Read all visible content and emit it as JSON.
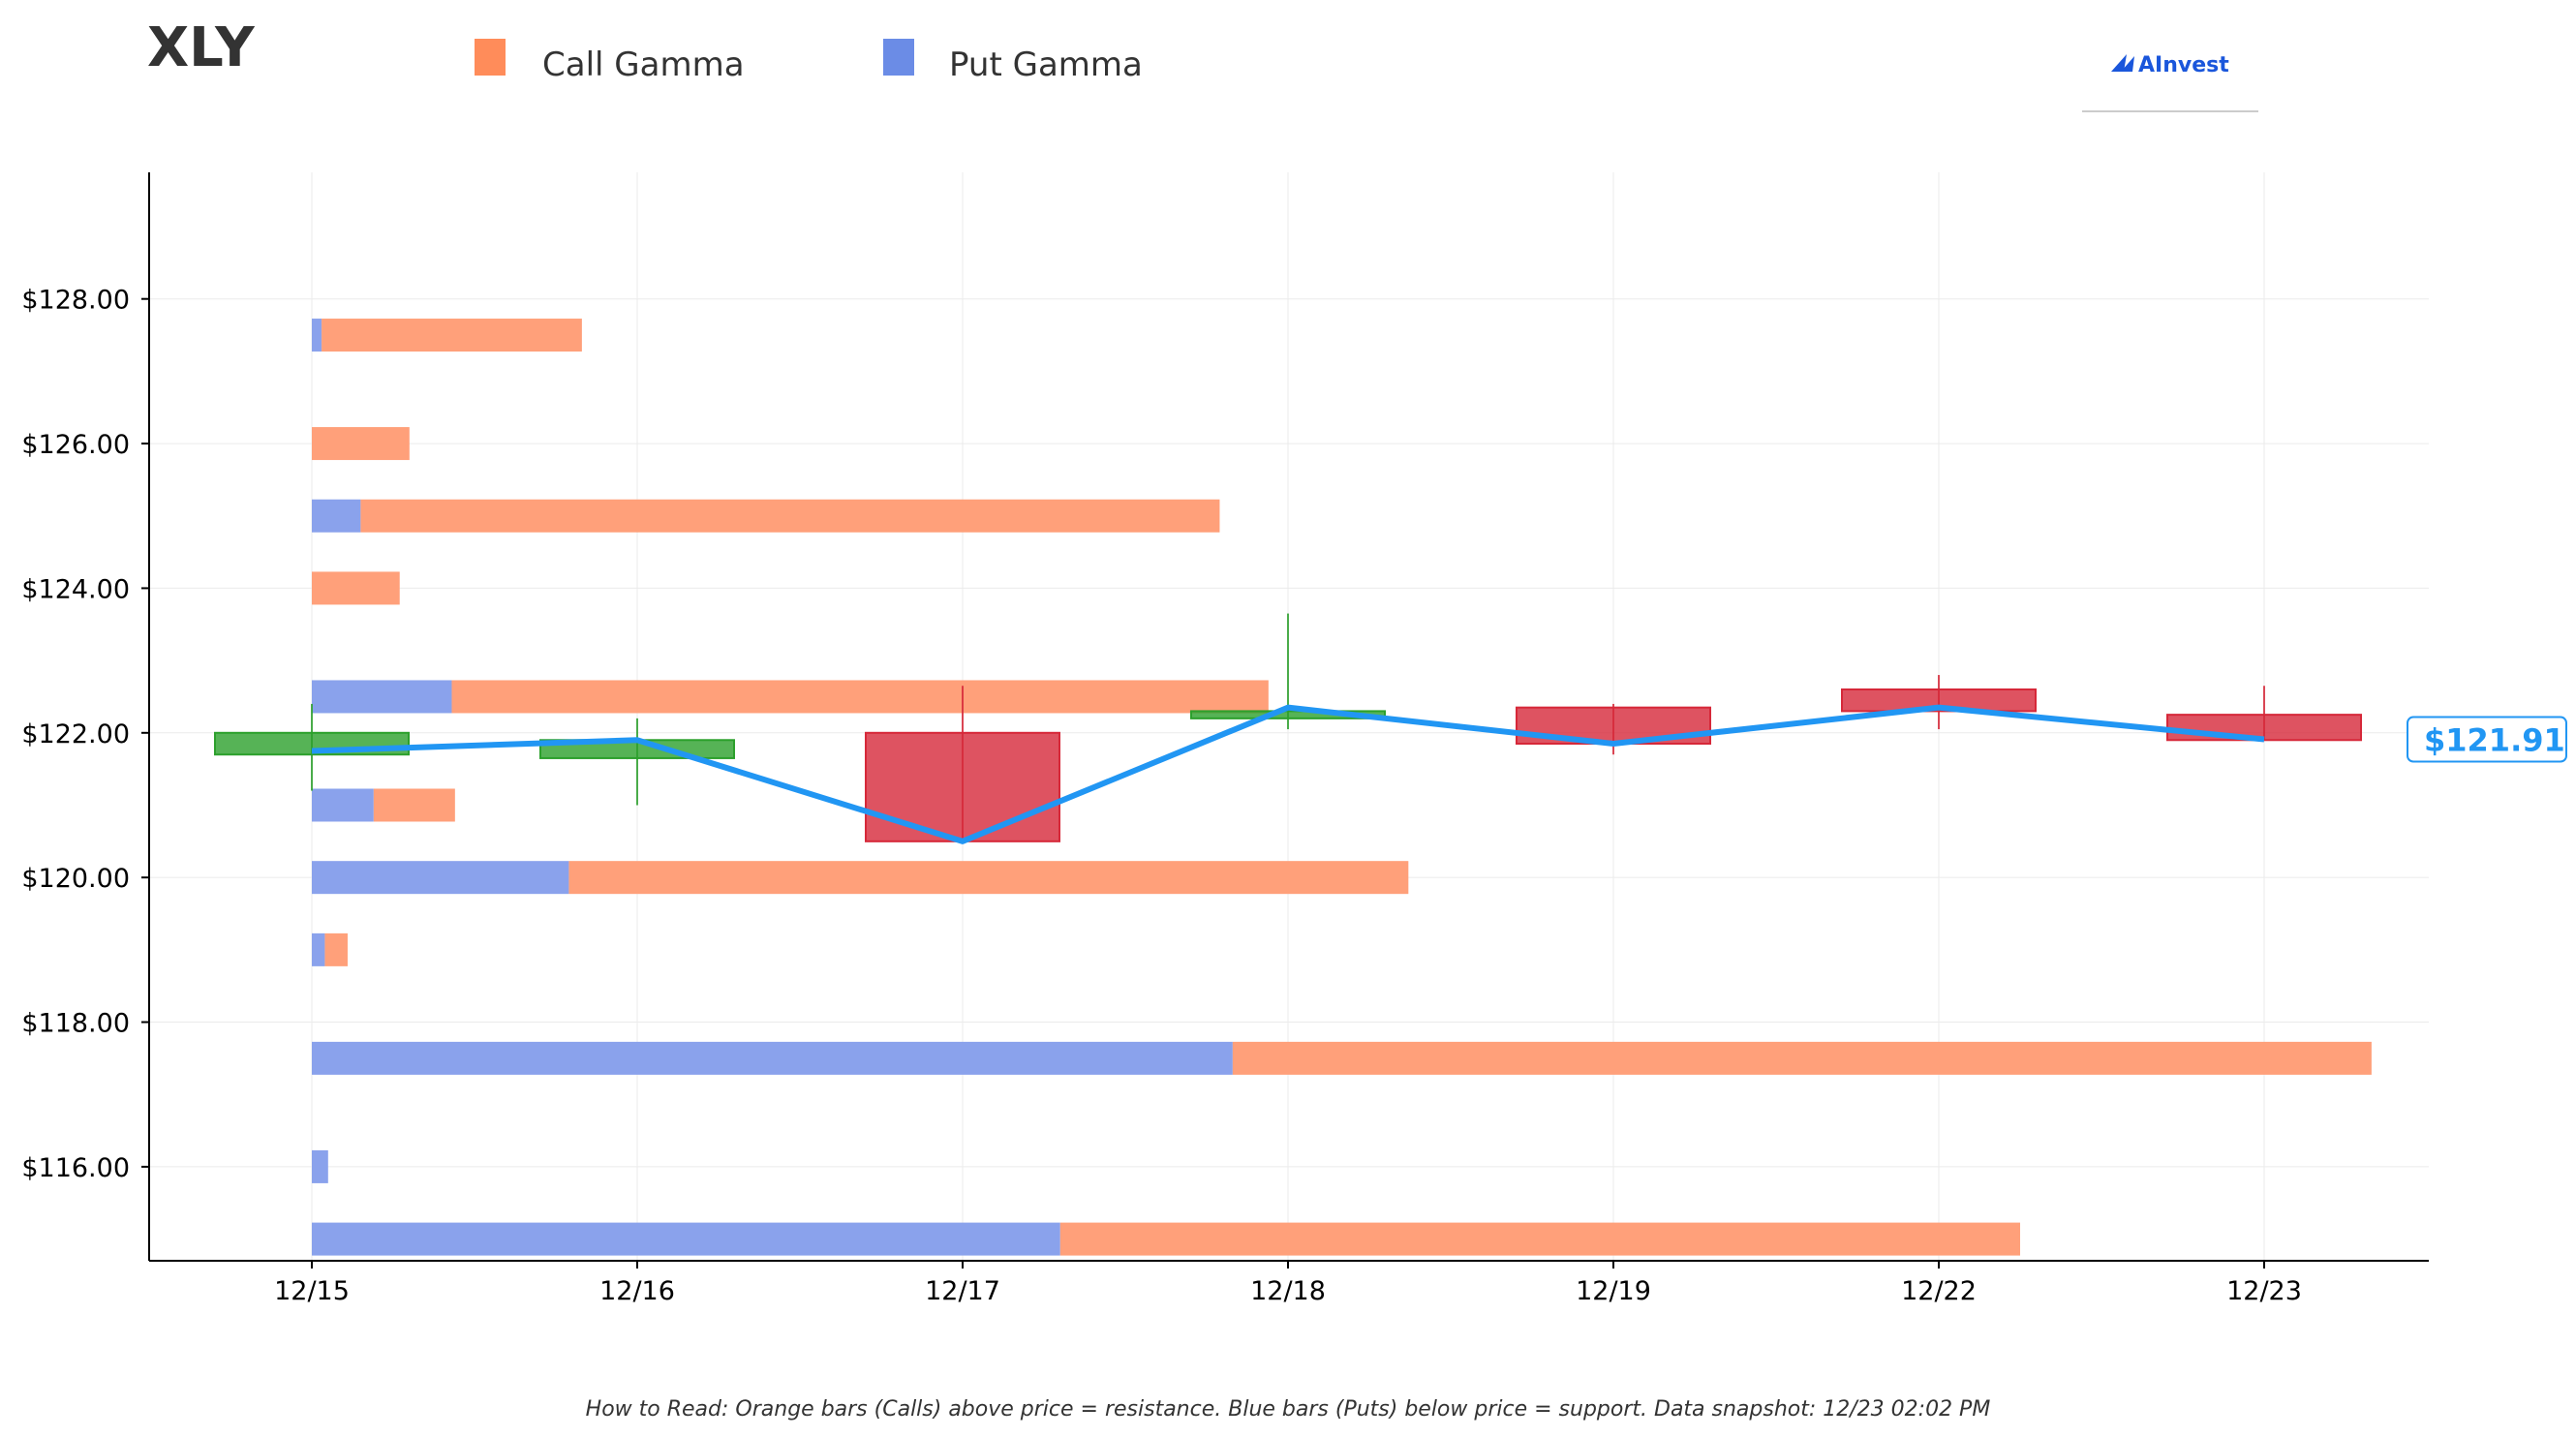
{
  "header": {
    "ticker": "XLY",
    "logo_text": "AInvest"
  },
  "legend": [
    {
      "label": "Call Gamma",
      "color": "#ff8c5a"
    },
    {
      "label": "Put Gamma",
      "color": "#6b8ce6"
    }
  ],
  "footer": {
    "note": "How to Read: Orange bars (Calls) above price = resistance. Blue bars (Puts) below price = support. Data snapshot: 12/23 02:02 PM"
  },
  "chart_data": {
    "type": "candlestick-with-gamma-bars",
    "x_categories": [
      "12/15",
      "12/16",
      "12/17",
      "12/18",
      "12/19",
      "12/22",
      "12/23"
    ],
    "y_ticks": [
      "$116.00",
      "$118.00",
      "$120.00",
      "$122.00",
      "$124.00",
      "$126.00",
      "$128.00"
    ],
    "y_tick_values": [
      116,
      118,
      120,
      122,
      124,
      126,
      128
    ],
    "ylim": [
      114.7,
      129.75
    ],
    "grid": true,
    "colors": {
      "up": "#2ca02c",
      "down": "#d62839",
      "price_line": "#2196f3",
      "call": "#ffa07a",
      "put": "#8aa2ec"
    },
    "candles": [
      {
        "date": "12/15",
        "open": 121.7,
        "close": 122.0,
        "high": 122.4,
        "low": 121.2
      },
      {
        "date": "12/16",
        "open": 121.65,
        "close": 121.9,
        "high": 122.2,
        "low": 121.0
      },
      {
        "date": "12/17",
        "open": 122.0,
        "close": 120.5,
        "high": 122.65,
        "low": 120.5
      },
      {
        "date": "12/18",
        "open": 122.2,
        "close": 122.3,
        "high": 123.65,
        "low": 122.05
      },
      {
        "date": "12/19",
        "open": 122.35,
        "close": 121.85,
        "high": 122.4,
        "low": 121.7
      },
      {
        "date": "12/22",
        "open": 122.6,
        "close": 122.3,
        "high": 122.8,
        "low": 122.05
      },
      {
        "date": "12/23",
        "open": 122.25,
        "close": 121.9,
        "high": 122.65,
        "low": 121.9
      }
    ],
    "price_line": [
      121.75,
      121.9,
      120.5,
      122.35,
      121.85,
      122.35,
      121.91
    ],
    "current_price_label": "$121.91",
    "gamma_units": "relative gamma (x-axis day units)",
    "gamma_levels": [
      {
        "strike": 127.5,
        "put": 0.03,
        "call": 0.8
      },
      {
        "strike": 126.0,
        "put": 0.0,
        "call": 0.3
      },
      {
        "strike": 125.0,
        "put": 0.15,
        "call": 2.64
      },
      {
        "strike": 124.0,
        "put": 0.0,
        "call": 0.27
      },
      {
        "strike": 122.5,
        "put": 0.43,
        "call": 2.51
      },
      {
        "strike": 121.0,
        "put": 0.19,
        "call": 0.25
      },
      {
        "strike": 120.0,
        "put": 0.79,
        "call": 2.58
      },
      {
        "strike": 119.0,
        "put": 0.04,
        "call": 0.07
      },
      {
        "strike": 117.5,
        "put": 2.83,
        "call": 3.5
      },
      {
        "strike": 116.0,
        "put": 0.05,
        "call": 0.0
      },
      {
        "strike": 115.0,
        "put": 2.3,
        "call": 2.95
      }
    ]
  }
}
